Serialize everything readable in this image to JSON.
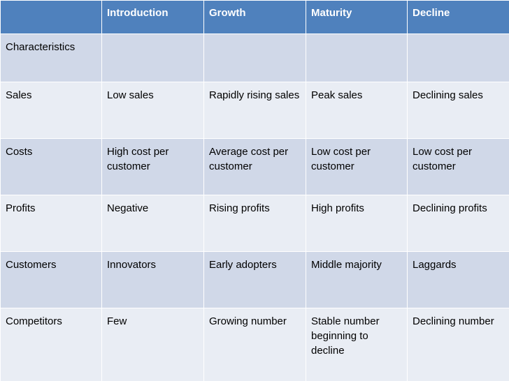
{
  "header": {
    "corner": "",
    "columns": [
      "Introduction",
      "Growth",
      "Maturity",
      "Decline"
    ]
  },
  "rows": [
    {
      "label": "Characteristics",
      "cells": [
        "",
        "",
        "",
        ""
      ]
    },
    {
      "label": "Sales",
      "cells": [
        "Low sales",
        "Rapidly rising sales",
        "Peak sales",
        "Declining sales"
      ]
    },
    {
      "label": "Costs",
      "cells": [
        "High cost per customer",
        "Average cost per customer",
        "Low cost per customer",
        "Low cost per customer"
      ]
    },
    {
      "label": "Profits",
      "cells": [
        "Negative",
        "Rising profits",
        "High profits",
        "Declining profits"
      ]
    },
    {
      "label": "Customers",
      "cells": [
        "Innovators",
        "Early adopters",
        "Middle majority",
        "Laggards"
      ]
    },
    {
      "label": "Competitors",
      "cells": [
        "Few",
        "Growing number",
        "Stable number beginning to decline",
        "Declining number"
      ]
    }
  ],
  "colors": {
    "header_bg": "#4f81bd",
    "row_odd_bg": "#d0d8e8",
    "row_even_bg": "#e9edf4"
  }
}
